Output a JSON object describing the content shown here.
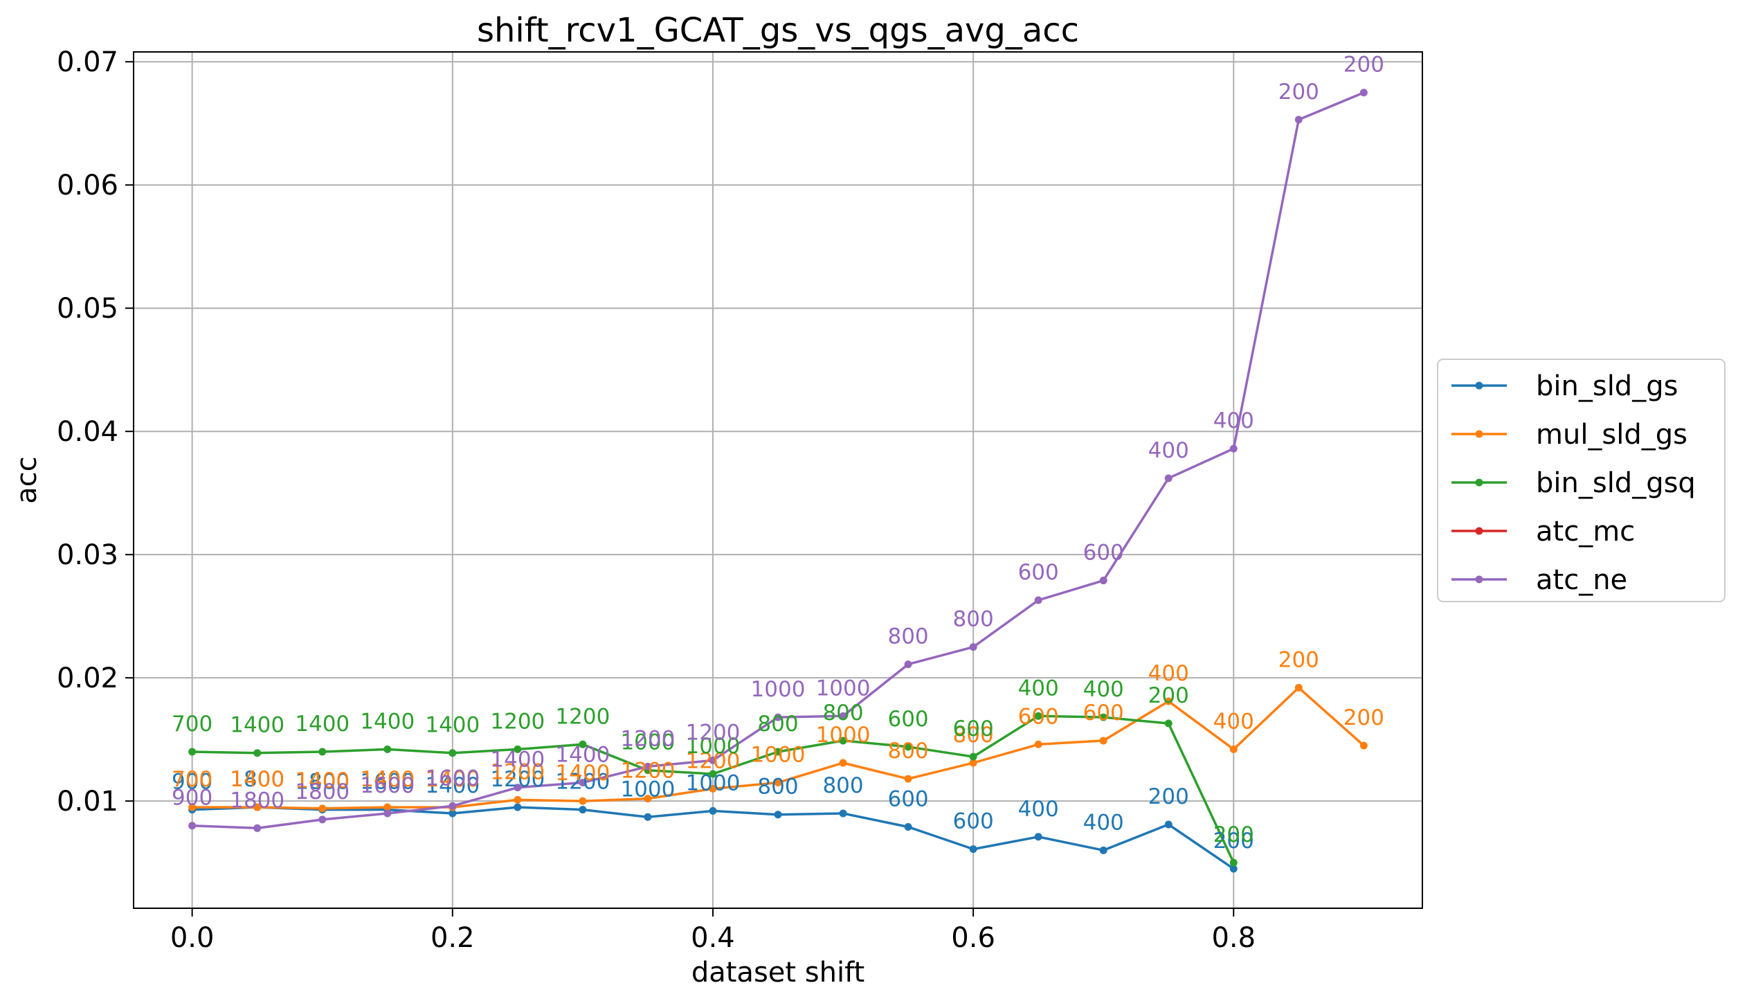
{
  "chart_data": {
    "type": "line",
    "title": "shift_rcv1_GCAT_gs_vs_qgs_avg_acc",
    "xlabel": "dataset shift",
    "ylabel": "acc",
    "xlim": [
      -0.045,
      0.945
    ],
    "ylim": [
      0.0013,
      0.0708
    ],
    "xticks": [
      0.0,
      0.2,
      0.4,
      0.6,
      0.8
    ],
    "xtick_labels": [
      "0.0",
      "0.2",
      "0.4",
      "0.6",
      "0.8"
    ],
    "yticks": [
      0.01,
      0.02,
      0.03,
      0.04,
      0.05,
      0.06,
      0.07
    ],
    "ytick_labels": [
      "0.01",
      "0.02",
      "0.03",
      "0.04",
      "0.05",
      "0.06",
      "0.07"
    ],
    "grid": true,
    "legend_position": "outside-right",
    "series": [
      {
        "name": "bin_sld_gs",
        "color": "#1f77b4",
        "x": [
          0.0,
          0.05,
          0.1,
          0.15,
          0.2,
          0.25,
          0.3,
          0.35,
          0.4,
          0.45,
          0.5,
          0.55,
          0.6,
          0.65,
          0.7,
          0.75,
          0.8
        ],
        "y": [
          0.0093,
          0.0095,
          0.0093,
          0.0093,
          0.009,
          0.0095,
          0.0093,
          0.0087,
          0.0092,
          0.0089,
          0.009,
          0.0079,
          0.0061,
          0.0071,
          0.006,
          0.0081,
          0.0045
        ],
        "labels": [
          "900",
          "1800",
          "1800",
          "1600",
          "1400",
          "1200",
          "1200",
          "1000",
          "1000",
          "800",
          "800",
          "600",
          "600",
          "400",
          "400",
          "200",
          "200"
        ]
      },
      {
        "name": "mul_sld_gs",
        "color": "#ff7f0e",
        "x": [
          0.0,
          0.05,
          0.1,
          0.15,
          0.2,
          0.25,
          0.3,
          0.35,
          0.4,
          0.45,
          0.5,
          0.55,
          0.6,
          0.65,
          0.7,
          0.75,
          0.8,
          0.85,
          0.9
        ],
        "y": [
          0.0095,
          0.0095,
          0.0094,
          0.0095,
          0.0095,
          0.0101,
          0.01,
          0.0102,
          0.011,
          0.0115,
          0.0131,
          0.0118,
          0.0131,
          0.0146,
          0.0149,
          0.0181,
          0.0142,
          0.0192,
          0.0145
        ],
        "labels": [
          "700",
          "1400",
          "1400",
          "1400",
          "1400",
          "1200",
          "1400",
          "1200",
          "1200",
          "1000",
          "1000",
          "800",
          "800",
          "600",
          "600",
          "400",
          "400",
          "200",
          "200"
        ]
      },
      {
        "name": "bin_sld_gsq",
        "color": "#2ca02c",
        "x": [
          0.0,
          0.05,
          0.1,
          0.15,
          0.2,
          0.25,
          0.3,
          0.35,
          0.4,
          0.45,
          0.5,
          0.55,
          0.6,
          0.65,
          0.7,
          0.75,
          0.8
        ],
        "y": [
          0.014,
          0.0139,
          0.014,
          0.0142,
          0.0139,
          0.0142,
          0.0146,
          0.0125,
          0.0122,
          0.014,
          0.0149,
          0.0144,
          0.0136,
          0.0169,
          0.0168,
          0.0163,
          0.005
        ],
        "labels": [
          "700",
          "1400",
          "1400",
          "1400",
          "1400",
          "1200",
          "1200",
          "1000",
          "1000",
          "800",
          "800",
          "600",
          "600",
          "400",
          "400",
          "200",
          "200"
        ]
      },
      {
        "name": "atc_mc",
        "color": "#d62728",
        "x": [],
        "y": [],
        "labels": []
      },
      {
        "name": "atc_ne",
        "color": "#9467bd",
        "x": [
          0.0,
          0.05,
          0.1,
          0.15,
          0.2,
          0.25,
          0.3,
          0.35,
          0.4,
          0.45,
          0.5,
          0.55,
          0.6,
          0.65,
          0.7,
          0.75,
          0.8,
          0.85,
          0.9
        ],
        "y": [
          0.008,
          0.0078,
          0.0085,
          0.009,
          0.0096,
          0.0111,
          0.0115,
          0.0128,
          0.0133,
          0.0168,
          0.0169,
          0.0211,
          0.0225,
          0.0263,
          0.0279,
          0.0362,
          0.0386,
          0.0653,
          0.0675
        ],
        "labels": [
          "900",
          "1800",
          "1800",
          "1600",
          "1600",
          "1400",
          "1400",
          "1200",
          "1200",
          "1000",
          "1000",
          "800",
          "800",
          "600",
          "600",
          "400",
          "400",
          "200",
          "200"
        ]
      }
    ]
  }
}
